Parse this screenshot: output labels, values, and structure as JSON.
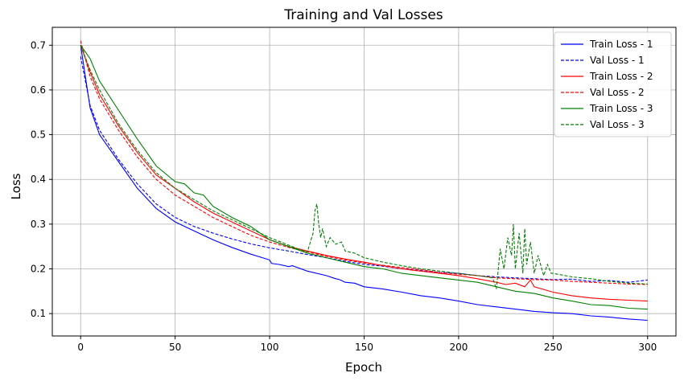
{
  "chart_data": {
    "type": "line",
    "title": "Training and Val Losses",
    "xlabel": "Epoch",
    "ylabel": "Loss",
    "xlim": [
      -15,
      315
    ],
    "ylim": [
      0.05,
      0.74
    ],
    "xticks": [
      0,
      50,
      100,
      150,
      200,
      250,
      300
    ],
    "yticks": [
      0.1,
      0.2,
      0.3,
      0.4,
      0.5,
      0.6,
      0.7
    ],
    "grid": true,
    "legend_position": "top-right",
    "series": [
      {
        "name": "Train Loss - 1",
        "color": "#0000ff",
        "dash": "solid",
        "points": [
          [
            0,
            0.7
          ],
          [
            5,
            0.56
          ],
          [
            10,
            0.5
          ],
          [
            20,
            0.44
          ],
          [
            30,
            0.38
          ],
          [
            40,
            0.335
          ],
          [
            50,
            0.305
          ],
          [
            60,
            0.285
          ],
          [
            70,
            0.265
          ],
          [
            80,
            0.248
          ],
          [
            90,
            0.233
          ],
          [
            100,
            0.22
          ],
          [
            101,
            0.212
          ],
          [
            105,
            0.21
          ],
          [
            110,
            0.205
          ],
          [
            112,
            0.207
          ],
          [
            120,
            0.195
          ],
          [
            130,
            0.185
          ],
          [
            135,
            0.178
          ],
          [
            137,
            0.176
          ],
          [
            140,
            0.17
          ],
          [
            145,
            0.168
          ],
          [
            150,
            0.16
          ],
          [
            160,
            0.155
          ],
          [
            170,
            0.148
          ],
          [
            180,
            0.14
          ],
          [
            190,
            0.135
          ],
          [
            200,
            0.128
          ],
          [
            210,
            0.12
          ],
          [
            220,
            0.115
          ],
          [
            230,
            0.11
          ],
          [
            240,
            0.105
          ],
          [
            250,
            0.102
          ],
          [
            260,
            0.1
          ],
          [
            270,
            0.095
          ],
          [
            280,
            0.092
          ],
          [
            290,
            0.088
          ],
          [
            300,
            0.085
          ]
        ]
      },
      {
        "name": "Val Loss - 1",
        "color": "#0000ff",
        "dash": "dashed",
        "points": [
          [
            0,
            0.675
          ],
          [
            5,
            0.565
          ],
          [
            10,
            0.51
          ],
          [
            20,
            0.445
          ],
          [
            30,
            0.39
          ],
          [
            40,
            0.345
          ],
          [
            50,
            0.315
          ],
          [
            60,
            0.295
          ],
          [
            70,
            0.28
          ],
          [
            80,
            0.267
          ],
          [
            90,
            0.256
          ],
          [
            100,
            0.247
          ],
          [
            110,
            0.24
          ],
          [
            120,
            0.232
          ],
          [
            130,
            0.225
          ],
          [
            140,
            0.217
          ],
          [
            150,
            0.21
          ],
          [
            160,
            0.206
          ],
          [
            170,
            0.2
          ],
          [
            180,
            0.196
          ],
          [
            190,
            0.192
          ],
          [
            200,
            0.19
          ],
          [
            210,
            0.185
          ],
          [
            220,
            0.182
          ],
          [
            230,
            0.18
          ],
          [
            240,
            0.178
          ],
          [
            250,
            0.176
          ],
          [
            260,
            0.177
          ],
          [
            270,
            0.172
          ],
          [
            280,
            0.174
          ],
          [
            290,
            0.17
          ],
          [
            300,
            0.175
          ]
        ]
      },
      {
        "name": "Train Loss - 2",
        "color": "#ff0000",
        "dash": "solid",
        "points": [
          [
            0,
            0.7
          ],
          [
            5,
            0.64
          ],
          [
            10,
            0.59
          ],
          [
            20,
            0.52
          ],
          [
            30,
            0.46
          ],
          [
            40,
            0.41
          ],
          [
            50,
            0.38
          ],
          [
            60,
            0.35
          ],
          [
            70,
            0.325
          ],
          [
            80,
            0.305
          ],
          [
            90,
            0.285
          ],
          [
            100,
            0.265
          ],
          [
            110,
            0.25
          ],
          [
            120,
            0.24
          ],
          [
            130,
            0.23
          ],
          [
            140,
            0.222
          ],
          [
            150,
            0.215
          ],
          [
            160,
            0.207
          ],
          [
            170,
            0.2
          ],
          [
            180,
            0.195
          ],
          [
            190,
            0.19
          ],
          [
            200,
            0.185
          ],
          [
            210,
            0.178
          ],
          [
            220,
            0.17
          ],
          [
            225,
            0.165
          ],
          [
            230,
            0.168
          ],
          [
            235,
            0.16
          ],
          [
            238,
            0.175
          ],
          [
            240,
            0.16
          ],
          [
            250,
            0.148
          ],
          [
            260,
            0.14
          ],
          [
            270,
            0.135
          ],
          [
            280,
            0.132
          ],
          [
            290,
            0.13
          ],
          [
            300,
            0.128
          ]
        ]
      },
      {
        "name": "Val Loss - 2",
        "color": "#ff0000",
        "dash": "dashed",
        "points": [
          [
            0,
            0.71
          ],
          [
            5,
            0.63
          ],
          [
            10,
            0.58
          ],
          [
            20,
            0.51
          ],
          [
            30,
            0.45
          ],
          [
            40,
            0.4
          ],
          [
            50,
            0.365
          ],
          [
            60,
            0.34
          ],
          [
            70,
            0.315
          ],
          [
            80,
            0.295
          ],
          [
            90,
            0.275
          ],
          [
            100,
            0.26
          ],
          [
            110,
            0.248
          ],
          [
            120,
            0.238
          ],
          [
            130,
            0.228
          ],
          [
            140,
            0.22
          ],
          [
            150,
            0.213
          ],
          [
            160,
            0.208
          ],
          [
            170,
            0.203
          ],
          [
            180,
            0.198
          ],
          [
            190,
            0.192
          ],
          [
            200,
            0.188
          ],
          [
            210,
            0.185
          ],
          [
            220,
            0.18
          ],
          [
            230,
            0.178
          ],
          [
            240,
            0.176
          ],
          [
            250,
            0.175
          ],
          [
            260,
            0.172
          ],
          [
            270,
            0.17
          ],
          [
            280,
            0.168
          ],
          [
            290,
            0.166
          ],
          [
            300,
            0.165
          ]
        ]
      },
      {
        "name": "Train Loss - 3",
        "color": "#008000",
        "dash": "solid",
        "points": [
          [
            0,
            0.7
          ],
          [
            5,
            0.67
          ],
          [
            10,
            0.62
          ],
          [
            20,
            0.555
          ],
          [
            30,
            0.49
          ],
          [
            40,
            0.43
          ],
          [
            50,
            0.395
          ],
          [
            55,
            0.39
          ],
          [
            60,
            0.37
          ],
          [
            65,
            0.365
          ],
          [
            70,
            0.34
          ],
          [
            80,
            0.315
          ],
          [
            90,
            0.295
          ],
          [
            100,
            0.265
          ],
          [
            110,
            0.25
          ],
          [
            120,
            0.235
          ],
          [
            125,
            0.23
          ],
          [
            130,
            0.225
          ],
          [
            140,
            0.215
          ],
          [
            150,
            0.205
          ],
          [
            160,
            0.2
          ],
          [
            170,
            0.19
          ],
          [
            180,
            0.185
          ],
          [
            190,
            0.18
          ],
          [
            200,
            0.175
          ],
          [
            210,
            0.17
          ],
          [
            220,
            0.16
          ],
          [
            230,
            0.15
          ],
          [
            240,
            0.145
          ],
          [
            250,
            0.135
          ],
          [
            260,
            0.128
          ],
          [
            270,
            0.12
          ],
          [
            280,
            0.118
          ],
          [
            290,
            0.112
          ],
          [
            300,
            0.11
          ]
        ]
      },
      {
        "name": "Val Loss - 3",
        "color": "#008000",
        "dash": "dashed",
        "points": [
          [
            0,
            0.7
          ],
          [
            5,
            0.645
          ],
          [
            10,
            0.6
          ],
          [
            20,
            0.525
          ],
          [
            30,
            0.465
          ],
          [
            40,
            0.415
          ],
          [
            50,
            0.38
          ],
          [
            60,
            0.355
          ],
          [
            70,
            0.33
          ],
          [
            80,
            0.31
          ],
          [
            90,
            0.29
          ],
          [
            100,
            0.27
          ],
          [
            110,
            0.253
          ],
          [
            115,
            0.245
          ],
          [
            120,
            0.238
          ],
          [
            123,
            0.28
          ],
          [
            124,
            0.33
          ],
          [
            125,
            0.345
          ],
          [
            126,
            0.3
          ],
          [
            127,
            0.27
          ],
          [
            128,
            0.29
          ],
          [
            130,
            0.25
          ],
          [
            132,
            0.27
          ],
          [
            135,
            0.255
          ],
          [
            138,
            0.26
          ],
          [
            140,
            0.24
          ],
          [
            145,
            0.235
          ],
          [
            150,
            0.225
          ],
          [
            160,
            0.215
          ],
          [
            170,
            0.207
          ],
          [
            180,
            0.2
          ],
          [
            190,
            0.195
          ],
          [
            200,
            0.19
          ],
          [
            210,
            0.185
          ],
          [
            218,
            0.18
          ],
          [
            220,
            0.155
          ],
          [
            222,
            0.245
          ],
          [
            224,
            0.2
          ],
          [
            226,
            0.27
          ],
          [
            228,
            0.23
          ],
          [
            229,
            0.3
          ],
          [
            230,
            0.2
          ],
          [
            232,
            0.28
          ],
          [
            234,
            0.19
          ],
          [
            235,
            0.29
          ],
          [
            236,
            0.21
          ],
          [
            238,
            0.26
          ],
          [
            240,
            0.19
          ],
          [
            242,
            0.23
          ],
          [
            245,
            0.185
          ],
          [
            247,
            0.21
          ],
          [
            249,
            0.19
          ],
          [
            250,
            0.19
          ],
          [
            260,
            0.182
          ],
          [
            270,
            0.178
          ],
          [
            280,
            0.172
          ],
          [
            290,
            0.168
          ],
          [
            300,
            0.166
          ]
        ]
      }
    ]
  }
}
